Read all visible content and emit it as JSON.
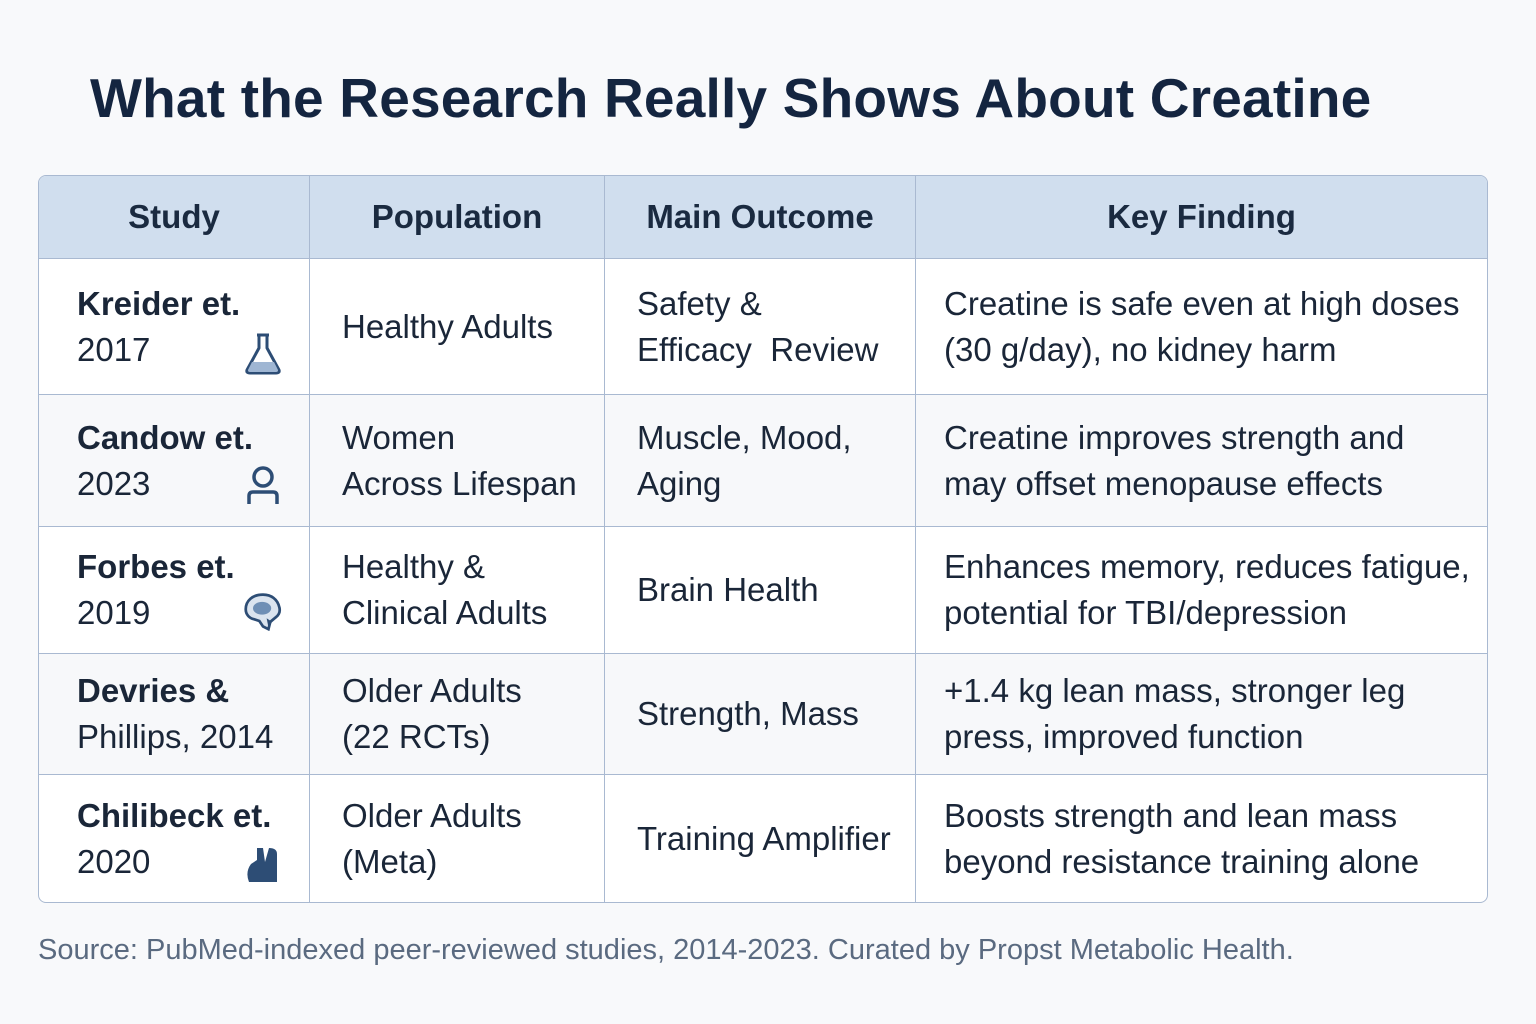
{
  "title": "What the Research Really Shows About Creatine",
  "table": {
    "headers": [
      "Study",
      "Population",
      "Main Outcome",
      "Key Finding"
    ],
    "rows": [
      {
        "study_name": "Kreider et.",
        "study_year": "2017",
        "icon": "flask-icon",
        "population": [
          "Healthy Adults"
        ],
        "outcome": [
          "Safety &",
          "Efficacy  Review"
        ],
        "finding": [
          "Creatine is safe even at high doses",
          "(30 g/day), no kidney harm"
        ]
      },
      {
        "study_name": "Candow et.",
        "study_year": "2023",
        "icon": "person-icon",
        "population": [
          "Women",
          "Across Lifespan"
        ],
        "outcome": [
          "Muscle, Mood,",
          "Aging"
        ],
        "finding": [
          "Creatine improves strength and",
          "may offset menopause effects"
        ]
      },
      {
        "study_name": "Forbes et.",
        "study_year": "2019",
        "icon": "brain-icon",
        "population": [
          "Healthy &",
          "Clinical Adults"
        ],
        "outcome": [
          "Brain Health"
        ],
        "finding": [
          "Enhances memory, reduces fatigue,",
          "potential for TBI/depression"
        ]
      },
      {
        "study_name": "Devries &",
        "study_year": "Phillips, 2014",
        "icon": "",
        "population": [
          "Older Adults",
          "(22 RCTs)"
        ],
        "outcome": [
          "Strength, Mass"
        ],
        "finding": [
          "+1.4 kg lean mass, stronger leg",
          "press, improved function"
        ]
      },
      {
        "study_name": "Chilibeck et.",
        "study_year": "2020",
        "icon": "flexed-arm-icon",
        "population": [
          "Older Adults",
          "(Meta)"
        ],
        "outcome": [
          "Training Amplifier"
        ],
        "finding": [
          "Boosts strength and lean mass",
          "beyond resistance training alone"
        ]
      }
    ]
  },
  "source": "Source: PubMed-indexed peer-reviewed studies, 2014-2023. Curated by Propst Metabolic Health.",
  "colors": {
    "header_bg": "#d0deee",
    "border": "#a9b9d1",
    "icon": "#2d4d75",
    "title": "#142540"
  }
}
